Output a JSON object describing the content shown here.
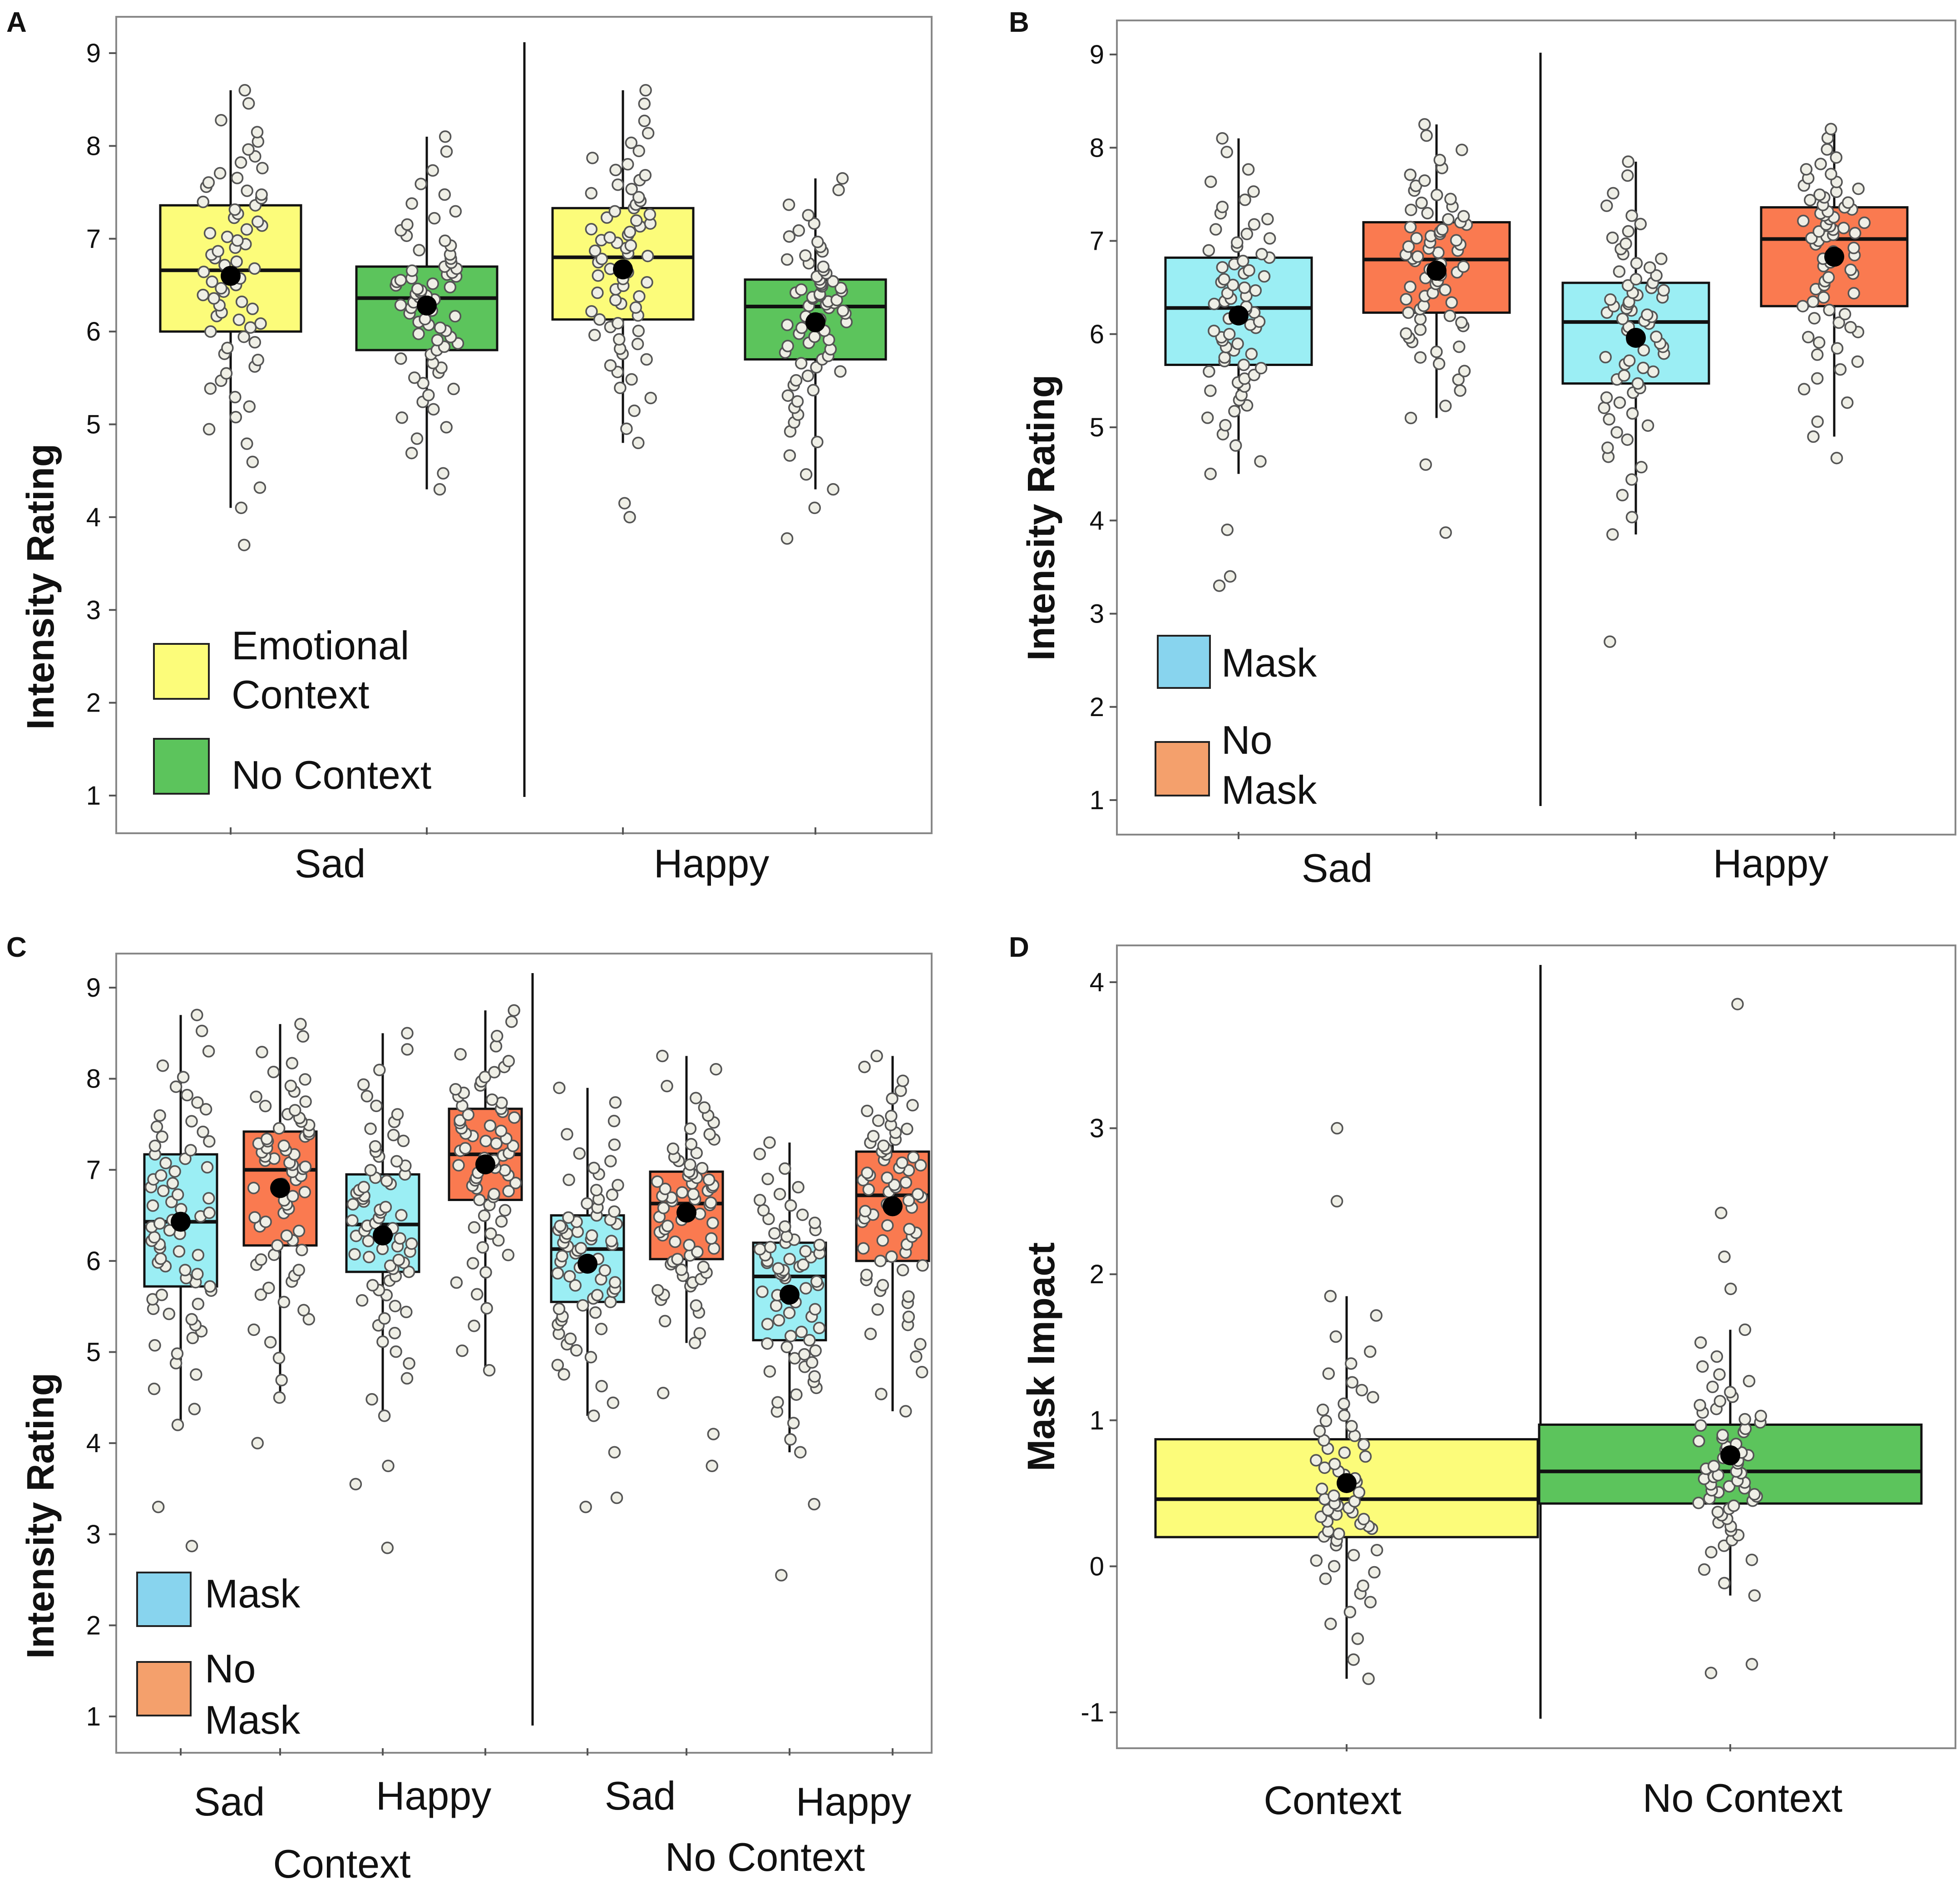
{
  "colors": {
    "context": "#fcfc7a",
    "no_context": "#5cc45c",
    "mask": "#9beef4",
    "no_mask": "#fa7a50",
    "legend_mask": "#88d4ee",
    "legend_no_mask": "#f4a06c",
    "point_fill": "#efefe6",
    "point_stroke": "#555555",
    "mean": "#000000"
  },
  "chart_data": [
    {
      "label": "A",
      "type": "box",
      "ylabel": "Intensity Rating",
      "ylim": [
        1,
        9
      ],
      "yticks": [
        "1",
        "2",
        "3",
        "4",
        "5",
        "6",
        "7",
        "8",
        "9"
      ],
      "group_labels": [
        "Sad",
        "Happy"
      ],
      "legend": [
        {
          "lines": [
            "Emotional",
            "Context"
          ],
          "color_key": "context"
        },
        {
          "lines": [
            "No Context"
          ],
          "color_key": "no_context"
        }
      ],
      "boxes": [
        {
          "group": "Sad",
          "series": "Emotional Context",
          "color_key": "context",
          "q1": 6.0,
          "median": 6.66,
          "q3": 7.36,
          "whisker_low": 4.1,
          "whisker_high": 8.6,
          "mean": 6.6,
          "n": 70,
          "outliers": [
            3.7
          ]
        },
        {
          "group": "Sad",
          "series": "No Context",
          "color_key": "no_context",
          "q1": 5.8,
          "median": 6.36,
          "q3": 6.7,
          "whisker_low": 4.3,
          "whisker_high": 8.1,
          "mean": 6.28,
          "n": 70,
          "outliers": []
        },
        {
          "group": "Happy",
          "series": "Emotional Context",
          "color_key": "context",
          "q1": 6.13,
          "median": 6.8,
          "q3": 7.33,
          "whisker_low": 4.8,
          "whisker_high": 8.6,
          "mean": 6.67,
          "n": 70,
          "outliers": [
            4.0,
            4.15
          ]
        },
        {
          "group": "Happy",
          "series": "No Context",
          "color_key": "no_context",
          "q1": 5.7,
          "median": 6.27,
          "q3": 6.56,
          "whisker_low": 4.3,
          "whisker_high": 7.65,
          "mean": 6.1,
          "n": 70,
          "outliers": [
            3.77,
            4.1
          ]
        }
      ]
    },
    {
      "label": "B",
      "type": "box",
      "ylabel": "Intensity Rating",
      "ylim": [
        1,
        9
      ],
      "yticks": [
        "1",
        "2",
        "3",
        "4",
        "5",
        "6",
        "7",
        "8",
        "9"
      ],
      "group_labels": [
        "Sad",
        "Happy"
      ],
      "legend": [
        {
          "lines": [
            "Mask"
          ],
          "color_key": "legend_mask"
        },
        {
          "lines": [
            "No",
            "Mask"
          ],
          "color_key": "legend_no_mask"
        }
      ],
      "boxes": [
        {
          "group": "Sad",
          "series": "Mask",
          "color_key": "mask",
          "q1": 5.67,
          "median": 6.28,
          "q3": 6.82,
          "whisker_low": 4.5,
          "whisker_high": 8.1,
          "mean": 6.2,
          "n": 70,
          "outliers": [
            3.3,
            3.4,
            3.9
          ]
        },
        {
          "group": "Sad",
          "series": "No Mask",
          "color_key": "no_mask",
          "q1": 6.23,
          "median": 6.8,
          "q3": 7.2,
          "whisker_low": 5.1,
          "whisker_high": 8.25,
          "mean": 6.68,
          "n": 70,
          "outliers": [
            3.87,
            4.6
          ]
        },
        {
          "group": "Happy",
          "series": "Mask",
          "color_key": "mask",
          "q1": 5.47,
          "median": 6.13,
          "q3": 6.55,
          "whisker_low": 3.85,
          "whisker_high": 7.85,
          "mean": 5.96,
          "n": 70,
          "outliers": [
            2.7
          ]
        },
        {
          "group": "Happy",
          "series": "No Mask",
          "color_key": "no_mask",
          "q1": 6.3,
          "median": 7.02,
          "q3": 7.36,
          "whisker_low": 4.9,
          "whisker_high": 8.2,
          "mean": 6.83,
          "n": 70,
          "outliers": [
            4.67
          ]
        }
      ]
    },
    {
      "label": "C",
      "type": "box",
      "ylabel": "Intensity Rating",
      "ylim": [
        1,
        9
      ],
      "yticks": [
        "1",
        "2",
        "3",
        "4",
        "5",
        "6",
        "7",
        "8",
        "9"
      ],
      "box_labels": [
        "Sad",
        "Happy",
        "Sad",
        "Happy"
      ],
      "group_labels": [
        "Context",
        "No Context"
      ],
      "legend": [
        {
          "lines": [
            "Mask"
          ],
          "color_key": "legend_mask"
        },
        {
          "lines": [
            "No",
            "Mask"
          ],
          "color_key": "legend_no_mask"
        }
      ],
      "boxes": [
        {
          "group": "Context",
          "emotion": "Sad",
          "series": "Mask",
          "color_key": "mask",
          "q1": 5.72,
          "median": 6.43,
          "q3": 7.17,
          "whisker_low": 4.2,
          "whisker_high": 8.7,
          "mean": 6.43,
          "n": 70,
          "outliers": [
            2.87,
            3.3
          ]
        },
        {
          "group": "Context",
          "emotion": "Sad",
          "series": "No Mask",
          "color_key": "no_mask",
          "q1": 6.17,
          "median": 7.0,
          "q3": 7.42,
          "whisker_low": 4.5,
          "whisker_high": 8.6,
          "mean": 6.8,
          "n": 70,
          "outliers": [
            4.0
          ]
        },
        {
          "group": "Context",
          "emotion": "Happy",
          "series": "Mask",
          "color_key": "mask",
          "q1": 5.88,
          "median": 6.4,
          "q3": 6.95,
          "whisker_low": 4.3,
          "whisker_high": 8.5,
          "mean": 6.28,
          "n": 70,
          "outliers": [
            2.85,
            3.55,
            3.75
          ]
        },
        {
          "group": "Context",
          "emotion": "Happy",
          "series": "No Mask",
          "color_key": "no_mask",
          "q1": 6.67,
          "median": 7.17,
          "q3": 7.67,
          "whisker_low": 4.8,
          "whisker_high": 8.75,
          "mean": 7.06,
          "n": 70,
          "outliers": []
        },
        {
          "group": "No Context",
          "emotion": "Sad",
          "series": "Mask",
          "color_key": "mask",
          "q1": 5.55,
          "median": 6.13,
          "q3": 6.5,
          "whisker_low": 4.3,
          "whisker_high": 7.9,
          "mean": 5.97,
          "n": 70,
          "outliers": [
            3.3,
            3.4,
            3.9
          ]
        },
        {
          "group": "No Context",
          "emotion": "Sad",
          "series": "No Mask",
          "color_key": "no_mask",
          "q1": 6.02,
          "median": 6.63,
          "q3": 6.98,
          "whisker_low": 5.1,
          "whisker_high": 8.25,
          "mean": 6.53,
          "n": 70,
          "outliers": [
            3.75,
            4.1,
            4.55
          ]
        },
        {
          "group": "No Context",
          "emotion": "Happy",
          "series": "Mask",
          "color_key": "mask",
          "q1": 5.13,
          "median": 5.83,
          "q3": 6.2,
          "whisker_low": 3.9,
          "whisker_high": 7.3,
          "mean": 5.63,
          "n": 70,
          "outliers": [
            2.55,
            3.33
          ]
        },
        {
          "group": "No Context",
          "emotion": "Happy",
          "series": "No Mask",
          "color_key": "no_mask",
          "q1": 6.0,
          "median": 6.72,
          "q3": 7.2,
          "whisker_low": 4.35,
          "whisker_high": 8.25,
          "mean": 6.6,
          "n": 70,
          "outliers": []
        }
      ]
    },
    {
      "label": "D",
      "type": "box",
      "ylabel": "Mask Impact",
      "ylim": [
        -1,
        4
      ],
      "yticks": [
        "-1",
        "0",
        "1",
        "2",
        "3",
        "4"
      ],
      "group_labels": [
        "Context",
        "No Context"
      ],
      "legend": [],
      "boxes": [
        {
          "group": "Context",
          "series": "Context",
          "color_key": "context",
          "q1": 0.2,
          "median": 0.46,
          "q3": 0.87,
          "whisker_low": -0.77,
          "whisker_high": 1.85,
          "mean": 0.57,
          "n": 65,
          "outliers": [
            2.5,
            3.0
          ]
        },
        {
          "group": "No Context",
          "series": "No Context",
          "color_key": "no_context",
          "q1": 0.43,
          "median": 0.65,
          "q3": 0.97,
          "whisker_low": -0.2,
          "whisker_high": 1.62,
          "mean": 0.76,
          "n": 65,
          "outliers": [
            -0.73,
            -0.67,
            1.9,
            2.12,
            2.42,
            3.85
          ]
        }
      ]
    }
  ]
}
